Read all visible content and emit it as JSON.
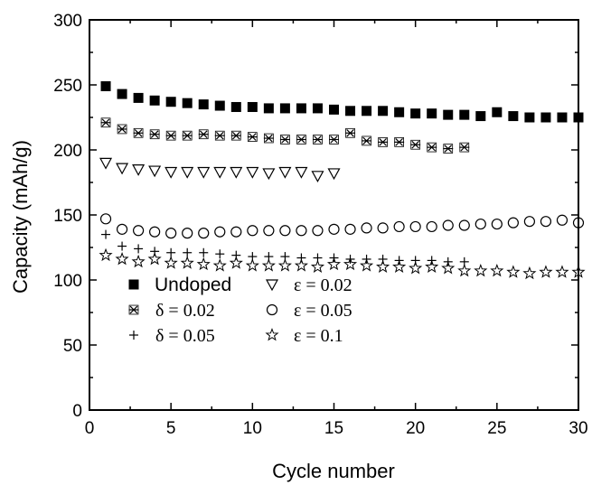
{
  "chart_data": {
    "type": "scatter",
    "title": "",
    "xlabel": "Cycle number",
    "ylabel": "Capacity (mAh/g)",
    "xlim": [
      0,
      30
    ],
    "ylim": [
      0,
      300
    ],
    "x_ticks": [
      "0",
      "5",
      "10",
      "15",
      "20",
      "25",
      "30"
    ],
    "y_ticks": [
      "0",
      "50",
      "100",
      "150",
      "200",
      "250",
      "300"
    ],
    "grid": false,
    "legend_position": "bottom-left",
    "series": [
      {
        "name": "Undoped",
        "marker": "filled-square",
        "x": [
          1,
          2,
          3,
          4,
          5,
          6,
          7,
          8,
          9,
          10,
          11,
          12,
          13,
          14,
          15,
          16,
          17,
          18,
          19,
          20,
          21,
          22,
          23,
          24,
          25,
          26,
          27,
          28,
          29,
          30
        ],
        "values": [
          249,
          243,
          240,
          238,
          237,
          236,
          235,
          234,
          233,
          233,
          232,
          232,
          232,
          232,
          231,
          230,
          230,
          230,
          229,
          228,
          228,
          227,
          227,
          226,
          229,
          226,
          225,
          225,
          225,
          225
        ]
      },
      {
        "name": "δ = 0.02",
        "marker": "asterisk",
        "x": [
          1,
          2,
          3,
          4,
          5,
          6,
          7,
          8,
          9,
          10,
          11,
          12,
          13,
          14,
          15,
          16,
          17,
          18,
          19,
          20,
          21,
          22,
          23
        ],
        "values": [
          221,
          216,
          213,
          212,
          211,
          211,
          212,
          211,
          211,
          210,
          209,
          208,
          208,
          208,
          208,
          213,
          207,
          206,
          206,
          204,
          202,
          201,
          202
        ]
      },
      {
        "name": "δ = 0.05",
        "marker": "plus",
        "x": [
          1,
          2,
          3,
          4,
          5,
          6,
          7,
          8,
          9,
          10,
          11,
          12,
          13,
          14,
          15,
          16,
          17,
          18,
          19,
          20,
          21,
          22,
          23
        ],
        "values": [
          135,
          126,
          124,
          122,
          121,
          121,
          121,
          120,
          119,
          118,
          118,
          118,
          117,
          117,
          117,
          116,
          116,
          116,
          115,
          115,
          115,
          114,
          114
        ]
      },
      {
        "name": "ε = 0.02",
        "marker": "open-triangle-down",
        "x": [
          1,
          2,
          3,
          4,
          5,
          6,
          7,
          8,
          9,
          10,
          11,
          12,
          13,
          14,
          15
        ],
        "values": [
          190,
          186,
          185,
          184,
          183,
          183,
          183,
          183,
          183,
          183,
          182,
          183,
          183,
          180,
          182
        ]
      },
      {
        "name": "ε = 0.05",
        "marker": "open-circle",
        "x": [
          1,
          2,
          3,
          4,
          5,
          6,
          7,
          8,
          9,
          10,
          11,
          12,
          13,
          14,
          15,
          16,
          17,
          18,
          19,
          20,
          21,
          22,
          23,
          24,
          25,
          26,
          27,
          28,
          29,
          30
        ],
        "values": [
          147,
          139,
          138,
          137,
          136,
          136,
          136,
          137,
          137,
          138,
          138,
          138,
          138,
          138,
          139,
          139,
          140,
          140,
          141,
          141,
          141,
          142,
          142,
          143,
          143,
          144,
          145,
          145,
          146,
          144
        ]
      },
      {
        "name": "ε = 0.1",
        "marker": "open-star",
        "x": [
          1,
          2,
          3,
          4,
          5,
          6,
          7,
          8,
          9,
          10,
          11,
          12,
          13,
          14,
          15,
          16,
          17,
          18,
          19,
          20,
          21,
          22,
          23,
          24,
          25,
          26,
          27,
          28,
          29,
          30
        ],
        "values": [
          119,
          116,
          114,
          116,
          113,
          113,
          112,
          111,
          113,
          111,
          111,
          111,
          111,
          110,
          112,
          112,
          111,
          110,
          110,
          109,
          110,
          109,
          107,
          107,
          107,
          106,
          105,
          106,
          106,
          106
        ]
      }
    ]
  }
}
